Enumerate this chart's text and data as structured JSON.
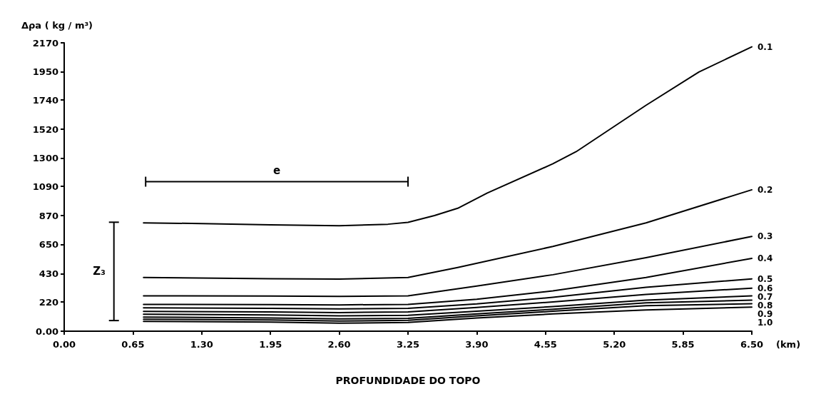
{
  "chart_data": {
    "type": "line",
    "xlabel": "PROFUNDIDADE DO TOPO",
    "ylabel": "Δρa ( kg / m³)",
    "annotations": [
      "e",
      "Z₃",
      "(km)"
    ],
    "xlim": [
      0,
      6.5
    ],
    "xticks": [
      {
        "value": 0,
        "label": "0.00"
      },
      {
        "value": 0.65,
        "label": "0.65"
      },
      {
        "value": 1.3,
        "label": "1.30"
      },
      {
        "value": 1.95,
        "label": "1.95"
      },
      {
        "value": 2.6,
        "label": "2.60"
      },
      {
        "value": 3.25,
        "label": "3.25"
      },
      {
        "value": 3.9,
        "label": "3.90"
      },
      {
        "value": 4.55,
        "label": "4.55"
      },
      {
        "value": 5.2,
        "label": "5.20"
      },
      {
        "value": 5.85,
        "label": "5.85"
      },
      {
        "value": 6.5,
        "label": "6.50"
      }
    ],
    "ylim": [
      0,
      2170
    ],
    "yticks": [
      {
        "value": 0,
        "label": "0.00"
      },
      220,
      430,
      650,
      870,
      1090,
      1300,
      1520,
      1740,
      1950,
      2170
    ],
    "grid": false,
    "legend": false,
    "marker": "none",
    "line_style": "solid",
    "series": [
      {
        "name": "0.1",
        "color": "#000000",
        "x": [
          0.75,
          1.3,
          1.95,
          2.6,
          3.06,
          3.25,
          3.5,
          3.72,
          4.0,
          4.62,
          4.84,
          5.5,
          6.0,
          6.5
        ],
        "values": [
          815,
          810,
          800,
          793,
          805,
          819,
          870,
          925,
          1040,
          1260,
          1351,
          1700,
          1950,
          2140
        ]
      },
      {
        "name": "0.2",
        "color": "#000000",
        "x": [
          0.75,
          1.95,
          2.6,
          3.25,
          3.72,
          4.62,
          5.5,
          6.5
        ],
        "values": [
          404,
          395,
          392,
          404,
          479,
          638,
          815,
          1064
        ]
      },
      {
        "name": "0.3",
        "color": "#000000",
        "x": [
          0.75,
          1.95,
          2.6,
          3.25,
          3.9,
          4.62,
          5.5,
          6.5
        ],
        "values": [
          266,
          264,
          262,
          266,
          340,
          425,
          553,
          713
        ]
      },
      {
        "name": "0.4",
        "color": "#000000",
        "x": [
          0.75,
          1.95,
          2.6,
          3.25,
          3.9,
          4.62,
          5.5,
          6.5
        ],
        "values": [
          202,
          200,
          198,
          202,
          240,
          303,
          404,
          548
        ]
      },
      {
        "name": "0.5",
        "color": "#000000",
        "x": [
          0.75,
          1.95,
          2.6,
          3.25,
          3.9,
          4.62,
          5.5,
          6.5
        ],
        "values": [
          176,
          172,
          168,
          172,
          205,
          255,
          330,
          394
        ]
      },
      {
        "name": "0.6",
        "color": "#000000",
        "x": [
          0.75,
          1.95,
          2.6,
          3.25,
          3.9,
          4.62,
          5.5,
          6.5
        ],
        "values": [
          149,
          145,
          140,
          145,
          178,
          220,
          277,
          324
        ]
      },
      {
        "name": "0.7",
        "color": "#000000",
        "x": [
          0.75,
          1.95,
          2.6,
          3.25,
          3.9,
          4.62,
          5.5,
          6.5
        ],
        "values": [
          128,
          122,
          115,
          120,
          150,
          185,
          234,
          266
        ]
      },
      {
        "name": "0.8",
        "color": "#000000",
        "x": [
          0.75,
          1.95,
          2.6,
          3.25,
          3.9,
          4.62,
          5.5,
          6.5
        ],
        "values": [
          106,
          100,
          92,
          97,
          130,
          165,
          213,
          234
        ]
      },
      {
        "name": "0.9",
        "color": "#000000",
        "x": [
          0.75,
          1.95,
          2.6,
          3.25,
          3.9,
          4.62,
          5.5,
          6.5
        ],
        "values": [
          90,
          84,
          76,
          82,
          115,
          150,
          192,
          207
        ]
      },
      {
        "name": "1.0",
        "color": "#000000",
        "x": [
          0.75,
          1.95,
          2.6,
          3.25,
          3.9,
          4.62,
          5.5,
          6.5
        ],
        "values": [
          74,
          68,
          60,
          66,
          100,
          130,
          160,
          181
        ]
      }
    ]
  }
}
